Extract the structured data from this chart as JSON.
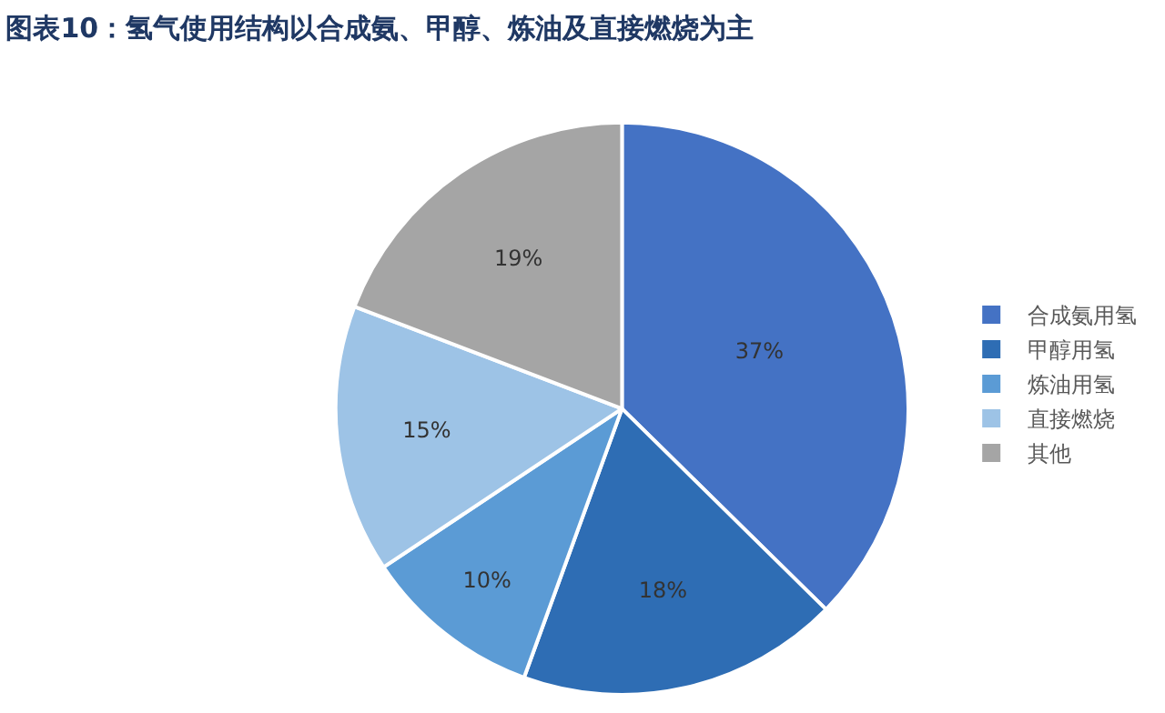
{
  "chart_data": {
    "type": "pie",
    "title": "图表10：氢气使用结构以合成氨、甲醇、炼油及直接燃烧为主",
    "categories": [
      "合成氨用氢",
      "甲醇用氢",
      "炼油用氢",
      "直接燃烧",
      "其他"
    ],
    "values": [
      37,
      18,
      10,
      15,
      19
    ],
    "value_labels": [
      "37%",
      "18%",
      "10%",
      "15%",
      "19%"
    ],
    "colors": [
      "#4472c4",
      "#2e6db4",
      "#5b9bd5",
      "#9dc3e6",
      "#a5a5a5"
    ],
    "legend": "right"
  }
}
